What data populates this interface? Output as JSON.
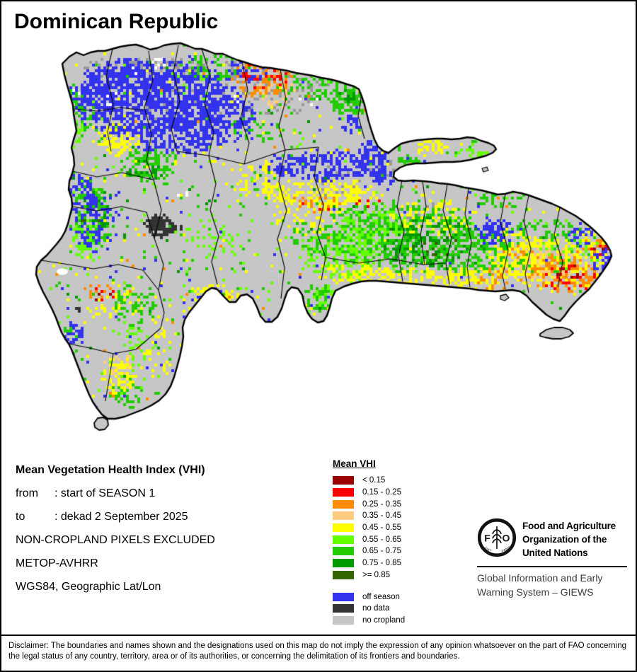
{
  "title": "Dominican Republic",
  "map": {
    "region_name": "Dominican Republic",
    "colors": {
      "sea": "#ffffff",
      "boundary": "#000000",
      "medium_gray": "#9a9a9a"
    }
  },
  "info": {
    "heading": "Mean Vegetation Health Index (VHI)",
    "lines": [
      {
        "label": "from",
        "text": ": start of SEASON 1"
      },
      {
        "label": "to",
        "text": ": dekad 2 September 2025"
      },
      {
        "label": "",
        "text": "NON-CROPLAND PIXELS EXCLUDED"
      },
      {
        "label": "",
        "text": "METOP-AVHRR"
      },
      {
        "label": "",
        "text": "WGS84, Geographic Lat/Lon"
      }
    ]
  },
  "legend": {
    "title": "Mean VHI",
    "items": [
      {
        "label": "< 0.15",
        "color": "#990000"
      },
      {
        "label": "0.15 - 0.25",
        "color": "#ff0000"
      },
      {
        "label": "0.25 - 0.35",
        "color": "#ff8c00"
      },
      {
        "label": "0.35 - 0.45",
        "color": "#ffcc80"
      },
      {
        "label": "0.45 - 0.55",
        "color": "#ffff00"
      },
      {
        "label": "0.55 - 0.65",
        "color": "#66ff00"
      },
      {
        "label": "0.65 - 0.75",
        "color": "#22cc00"
      },
      {
        "label": "0.75 - 0.85",
        "color": "#009900"
      },
      {
        "label": ">= 0.85",
        "color": "#336600"
      }
    ],
    "extra_items": [
      {
        "label": "off season",
        "color": "#3333ee"
      },
      {
        "label": "no data",
        "color": "#333333"
      },
      {
        "label": "no cropland",
        "color": "#c6c6c6"
      }
    ]
  },
  "fao": {
    "org_lines": [
      "Food and Agriculture",
      "Organization of the",
      "United Nations"
    ],
    "giews_lines": [
      "Global Information and Early",
      "Warning System – GIEWS"
    ],
    "logo": {
      "f": "F",
      "o": "O",
      "motto_left": "FIAT",
      "motto_right": "PANIS"
    }
  },
  "disclaimer": "Disclaimer: The boundaries and names shown and the designations used on this map do not imply the expression of any opinion whatsoever on the part of FAO concerning the legal status of any country, territory, area or of its authorities, or concerning the delimitation of its frontiers and boundaries."
}
